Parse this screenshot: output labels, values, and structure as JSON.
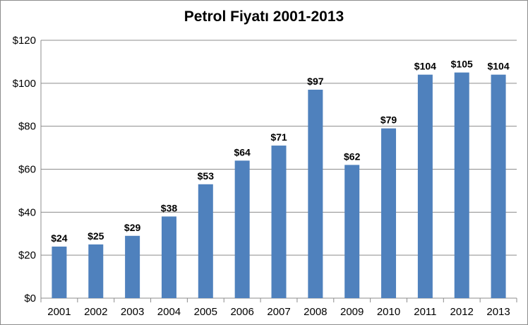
{
  "chart_data": {
    "type": "bar",
    "title": "Petrol Fiyatı 2001-2013",
    "categories": [
      "2001",
      "2002",
      "2003",
      "2004",
      "2005",
      "2006",
      "2007",
      "2008",
      "2009",
      "2010",
      "2011",
      "2012",
      "2013"
    ],
    "values": [
      24,
      25,
      29,
      38,
      53,
      64,
      71,
      97,
      62,
      79,
      104,
      105,
      104
    ],
    "data_labels": [
      "$24",
      "$25",
      "$29",
      "$38",
      "$53",
      "$64",
      "$71",
      "$97",
      "$62",
      "$79",
      "$104",
      "$105",
      "$104"
    ],
    "y_tick_labels": [
      "$0",
      "$20",
      "$40",
      "$60",
      "$80",
      "$100",
      "$120"
    ],
    "y_ticks": [
      0,
      20,
      40,
      60,
      80,
      100,
      120
    ],
    "ylim": [
      0,
      120
    ],
    "grid": true,
    "legend": "none",
    "bar_color": "#4f81bd",
    "grid_color": "#8c8c8c"
  }
}
